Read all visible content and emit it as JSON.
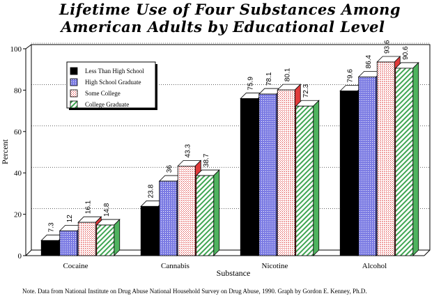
{
  "chart_data": {
    "type": "bar",
    "title_lines": [
      "Lifetime Use of Four Substances Among",
      "American Adults by Educational Level"
    ],
    "xlabel": "Substance",
    "ylabel": "Percent",
    "categories": [
      "Cocaine",
      "Cannabis",
      "Nicotine",
      "Alcohol"
    ],
    "series": [
      {
        "name": "Less Than High School",
        "values": [
          7.3,
          23.8,
          75.9,
          79.6
        ],
        "color": "#000000",
        "side_color": "#000000",
        "pattern": "solid"
      },
      {
        "name": "High School Graduate",
        "values": [
          12,
          36,
          78.1,
          86.4
        ],
        "color": "#7b7be3",
        "side_color": "#5a5ac8",
        "pattern": "dots"
      },
      {
        "name": "Some College",
        "values": [
          16.1,
          43.3,
          80.1,
          93.6
        ],
        "color": "#f4b6b6",
        "side_color": "#e03b3b",
        "pattern": "dots"
      },
      {
        "name": "College Graduate",
        "values": [
          14.8,
          38.7,
          72.3,
          90.6
        ],
        "color": "#8fd49a",
        "side_color": "#4fb35f",
        "pattern": "hatch"
      }
    ],
    "data_labels": [
      [
        "7.3",
        "23.8",
        "75.9",
        "79.6"
      ],
      [
        "12",
        "36",
        "78.1",
        "86.4"
      ],
      [
        "16.1",
        "43.3",
        "80.1",
        "93.6"
      ],
      [
        "14.8",
        "38.7",
        "72.3",
        "90.6"
      ]
    ],
    "ylim": [
      0,
      100
    ],
    "yticks": [
      "0",
      "20",
      "40",
      "60",
      "80",
      "100"
    ],
    "grid": true,
    "legend_position": "top-left"
  },
  "note": "Note.  Data from National Institute on Drug Abuse National Household Survey on Drug Abuse, 1990.  Graph by Gordon E. Kenney, Ph.D."
}
